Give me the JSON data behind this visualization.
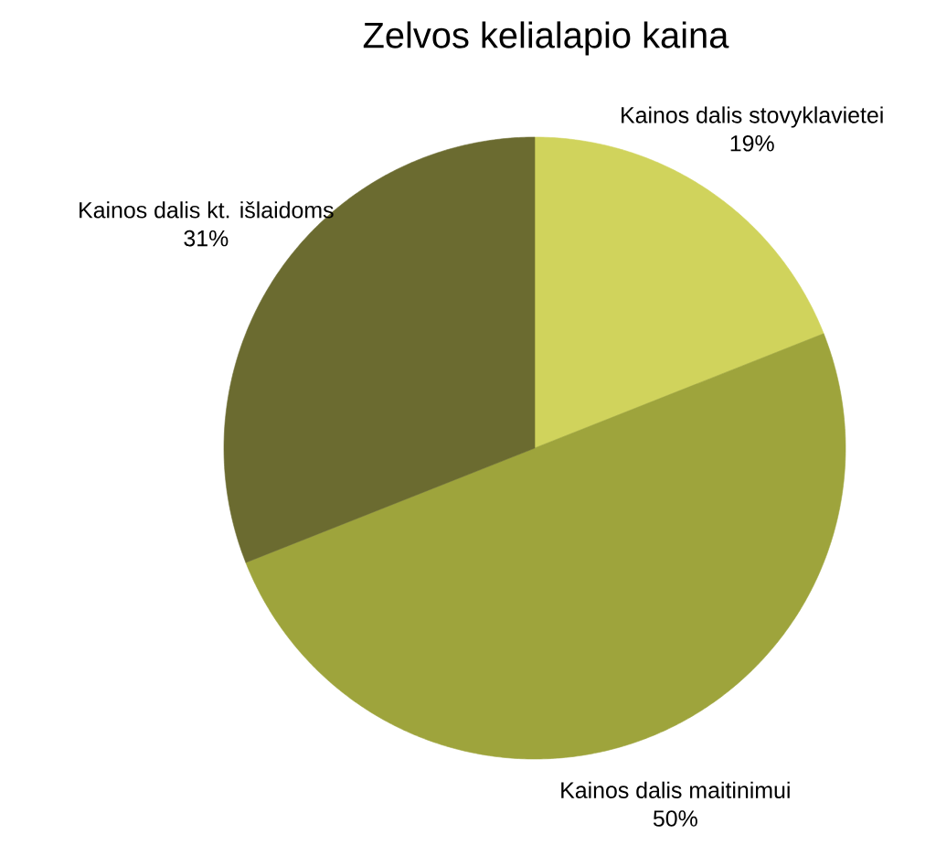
{
  "chart_data": {
    "type": "pie",
    "title": "Zelvos kelialapio kaina",
    "categories": [
      "Kainos dalis stovyklavietei",
      "Kainos dalis maitinimui",
      "Kainos dalis kt. išlaidoms"
    ],
    "values": [
      19,
      50,
      31
    ],
    "colors": [
      "#d0d35c",
      "#9ea43c",
      "#6b6b30"
    ],
    "value_labels": [
      "19%",
      "50%",
      "31%"
    ]
  }
}
